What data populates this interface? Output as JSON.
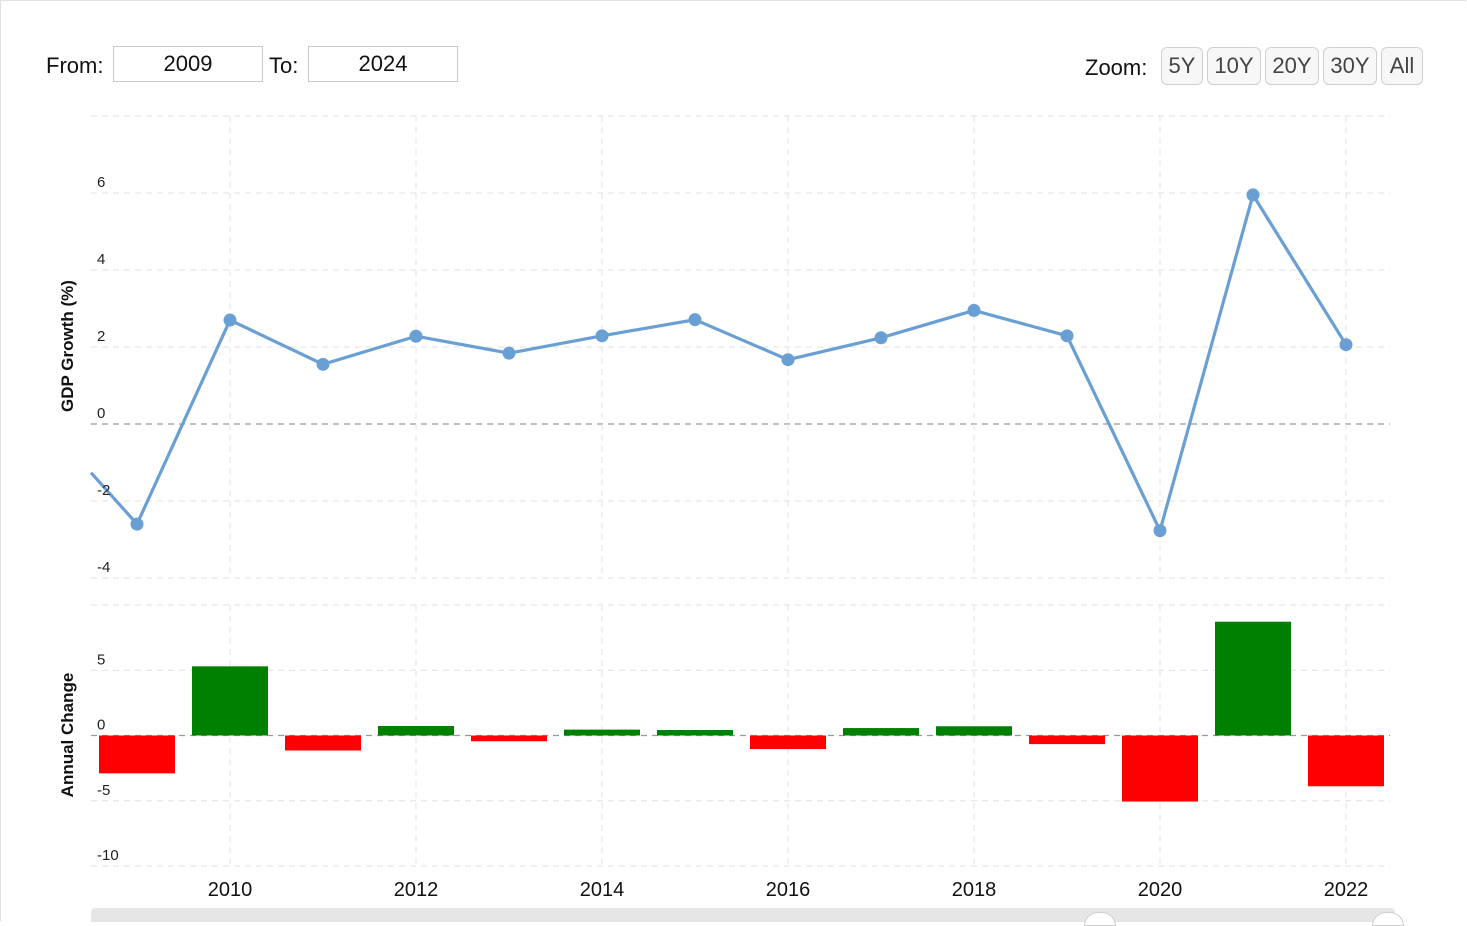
{
  "controls": {
    "from_label": "From:",
    "from_value": "2009",
    "to_label": "To:",
    "to_value": "2024",
    "zoom_label": "Zoom:",
    "zoom_buttons": [
      "5Y",
      "10Y",
      "20Y",
      "30Y",
      "All"
    ]
  },
  "chart_data": [
    {
      "type": "line",
      "ylabel": "GDP Growth (%)",
      "x": [
        2009,
        2010,
        2011,
        2012,
        2013,
        2014,
        2015,
        2016,
        2017,
        2018,
        2019,
        2020,
        2021,
        2022
      ],
      "values": [
        -2.6,
        2.7,
        1.55,
        2.28,
        1.84,
        2.29,
        2.71,
        1.67,
        2.24,
        2.95,
        2.29,
        -2.77,
        5.95,
        2.06
      ],
      "ylim": [
        -4,
        8
      ],
      "yticks": [
        "-4",
        "-2",
        "0",
        "2",
        "4",
        "6"
      ],
      "xticks": [
        "2010",
        "2012",
        "2014",
        "2016",
        "2018",
        "2020",
        "2022"
      ],
      "grid": true,
      "color": "#6a9fd4"
    },
    {
      "type": "bar",
      "ylabel": "Annual Change",
      "x": [
        2009,
        2010,
        2011,
        2012,
        2013,
        2014,
        2015,
        2016,
        2017,
        2018,
        2019,
        2020,
        2021,
        2022
      ],
      "values": [
        -2.9,
        5.3,
        -1.15,
        0.73,
        -0.44,
        0.45,
        0.42,
        -1.04,
        0.57,
        0.71,
        -0.66,
        -5.06,
        8.72,
        -3.89
      ],
      "ylim": [
        -10,
        10
      ],
      "yticks": [
        "-10",
        "-5",
        "0",
        "5"
      ],
      "grid": true,
      "positive_color": "#008000",
      "negative_color": "#ff0000"
    }
  ]
}
